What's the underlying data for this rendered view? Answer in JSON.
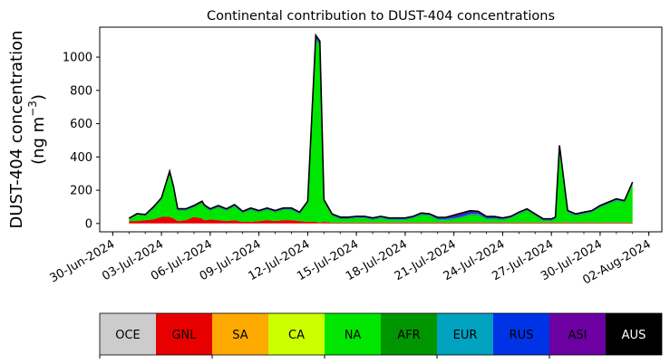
{
  "chart_data": {
    "type": "area",
    "title": "Continental contribution to DUST-404 concentrations",
    "ylabel_line1": "DUST-404 concentration",
    "ylabel_line2_prefix": "(ng m",
    "ylabel_line2_exp": "−3",
    "ylabel_line2_suffix": ")",
    "xlabel": "",
    "ylim": [
      -50,
      1180
    ],
    "yticks": [
      0,
      200,
      400,
      600,
      800,
      1000
    ],
    "x_start": "2024-07-01",
    "x_end": "2024-08-01",
    "xticks": [
      "30-Jun-2024",
      "03-Jul-2024",
      "06-Jul-2024",
      "09-Jul-2024",
      "12-Jul-2024",
      "15-Jul-2024",
      "18-Jul-2024",
      "21-Jul-2024",
      "24-Jul-2024",
      "27-Jul-2024",
      "30-Jul-2024",
      "02-Aug-2024"
    ],
    "x": [
      "2024-07-01",
      "2024-07-01 12:00",
      "2024-07-02",
      "2024-07-02 12:00",
      "2024-07-03",
      "2024-07-03 12:00",
      "2024-07-03 18:00",
      "2024-07-04",
      "2024-07-04 12:00",
      "2024-07-05",
      "2024-07-05 12:00",
      "2024-07-05 15:00",
      "2024-07-05 18:00",
      "2024-07-06",
      "2024-07-06 12:00",
      "2024-07-07",
      "2024-07-07 12:00",
      "2024-07-08",
      "2024-07-08 12:00",
      "2024-07-09",
      "2024-07-09 12:00",
      "2024-07-10",
      "2024-07-10 12:00",
      "2024-07-11",
      "2024-07-11 12:00",
      "2024-07-12",
      "2024-07-12 12:00",
      "2024-07-12 18:00",
      "2024-07-13",
      "2024-07-13 12:00",
      "2024-07-14",
      "2024-07-14 12:00",
      "2024-07-15",
      "2024-07-15 12:00",
      "2024-07-16",
      "2024-07-16 12:00",
      "2024-07-17",
      "2024-07-17 12:00",
      "2024-07-18",
      "2024-07-18 12:00",
      "2024-07-19",
      "2024-07-19 12:00",
      "2024-07-20",
      "2024-07-20 12:00",
      "2024-07-21",
      "2024-07-21 12:00",
      "2024-07-22",
      "2024-07-22 12:00",
      "2024-07-23",
      "2024-07-23 12:00",
      "2024-07-24",
      "2024-07-24 12:00",
      "2024-07-25",
      "2024-07-25 12:00",
      "2024-07-26",
      "2024-07-26 12:00",
      "2024-07-27",
      "2024-07-27 06:00",
      "2024-07-27 12:00",
      "2024-07-28",
      "2024-07-28 12:00",
      "2024-07-29",
      "2024-07-29 12:00",
      "2024-07-30",
      "2024-07-30 12:00",
      "2024-07-31",
      "2024-07-31 12:00",
      "2024-08-01"
    ],
    "series": [
      {
        "name": "GNL",
        "color": "#e80000",
        "values": [
          15,
          15,
          20,
          25,
          40,
          40,
          30,
          15,
          20,
          40,
          30,
          20,
          20,
          25,
          20,
          15,
          20,
          10,
          10,
          15,
          20,
          15,
          20,
          20,
          15,
          10,
          10,
          5,
          10,
          5,
          5,
          5,
          5,
          5,
          5,
          5,
          5,
          5,
          5,
          5,
          5,
          5,
          5,
          5,
          5,
          5,
          5,
          5,
          5,
          5,
          5,
          5,
          5,
          5,
          5,
          5,
          5,
          5,
          5,
          5,
          5,
          5,
          5,
          5,
          5,
          5,
          5,
          5
        ]
      },
      {
        "name": "NA",
        "color": "#00e600",
        "values": [
          10,
          35,
          25,
          60,
          100,
          250,
          170,
          60,
          55,
          55,
          90,
          80,
          70,
          50,
          75,
          60,
          80,
          50,
          70,
          50,
          60,
          50,
          60,
          60,
          40,
          110,
          1090,
          1060,
          120,
          40,
          20,
          20,
          25,
          25,
          15,
          25,
          15,
          15,
          15,
          25,
          45,
          40,
          15,
          15,
          20,
          30,
          45,
          45,
          20,
          20,
          15,
          25,
          50,
          70,
          40,
          10,
          10,
          20,
          420,
          60,
          40,
          50,
          60,
          90,
          110,
          130,
          120,
          230
        ]
      },
      {
        "name": "AFR",
        "color": "#009600",
        "values": [
          2,
          3,
          3,
          5,
          5,
          8,
          5,
          4,
          4,
          4,
          5,
          5,
          5,
          4,
          4,
          4,
          5,
          4,
          4,
          4,
          4,
          4,
          4,
          4,
          4,
          5,
          8,
          8,
          5,
          4,
          4,
          4,
          4,
          4,
          4,
          4,
          4,
          4,
          4,
          4,
          4,
          4,
          4,
          4,
          4,
          4,
          4,
          4,
          4,
          4,
          4,
          4,
          4,
          4,
          4,
          4,
          4,
          4,
          15,
          4,
          4,
          4,
          4,
          4,
          4,
          4,
          4,
          5
        ]
      },
      {
        "name": "EUR",
        "color": "#00a2c0",
        "values": [
          2,
          2,
          2,
          3,
          3,
          5,
          5,
          3,
          3,
          3,
          3,
          3,
          3,
          3,
          3,
          3,
          3,
          3,
          3,
          3,
          3,
          3,
          3,
          3,
          3,
          3,
          5,
          5,
          3,
          3,
          3,
          3,
          3,
          3,
          3,
          3,
          3,
          3,
          3,
          3,
          3,
          3,
          3,
          3,
          3,
          3,
          3,
          3,
          3,
          3,
          3,
          3,
          3,
          3,
          3,
          3,
          3,
          3,
          10,
          3,
          3,
          3,
          3,
          3,
          3,
          3,
          3,
          3
        ]
      },
      {
        "name": "RUS",
        "color": "#0032e6",
        "values": [
          1,
          2,
          2,
          3,
          3,
          5,
          5,
          3,
          3,
          3,
          3,
          3,
          3,
          3,
          3,
          3,
          3,
          3,
          3,
          3,
          3,
          3,
          3,
          3,
          3,
          3,
          8,
          8,
          3,
          3,
          3,
          3,
          3,
          3,
          3,
          3,
          3,
          3,
          3,
          3,
          3,
          3,
          5,
          5,
          8,
          10,
          10,
          8,
          5,
          5,
          3,
          3,
          3,
          3,
          3,
          3,
          3,
          3,
          10,
          3,
          3,
          3,
          3,
          3,
          3,
          3,
          3,
          3
        ]
      },
      {
        "name": "ASI",
        "color": "#6c00a0",
        "values": [
          1,
          2,
          2,
          3,
          3,
          6,
          5,
          3,
          3,
          3,
          3,
          3,
          3,
          3,
          3,
          3,
          3,
          3,
          3,
          3,
          3,
          3,
          3,
          3,
          3,
          3,
          10,
          10,
          3,
          3,
          3,
          3,
          3,
          3,
          3,
          3,
          3,
          3,
          3,
          3,
          3,
          3,
          5,
          5,
          10,
          12,
          10,
          8,
          5,
          5,
          3,
          3,
          3,
          3,
          3,
          3,
          3,
          3,
          10,
          3,
          3,
          3,
          3,
          3,
          3,
          3,
          3,
          3
        ]
      },
      {
        "name": "AUS",
        "color": "#000000",
        "values": [
          0,
          0,
          0,
          0,
          0,
          0,
          0,
          0,
          0,
          0,
          0,
          0,
          0,
          0,
          0,
          0,
          0,
          0,
          0,
          0,
          0,
          0,
          0,
          0,
          0,
          0,
          0,
          0,
          0,
          0,
          0,
          0,
          0,
          0,
          0,
          0,
          0,
          0,
          0,
          0,
          0,
          0,
          0,
          0,
          0,
          0,
          0,
          0,
          0,
          0,
          0,
          0,
          0,
          0,
          0,
          0,
          0,
          0,
          0,
          0,
          0,
          0,
          0,
          0,
          0,
          0,
          0,
          0
        ]
      }
    ],
    "legend": [
      {
        "name": "OCE",
        "color": "#cccccc",
        "text_color": "#000000"
      },
      {
        "name": "GNL",
        "color": "#e80000",
        "text_color": "#000000"
      },
      {
        "name": "SA",
        "color": "#ffaa00",
        "text_color": "#000000"
      },
      {
        "name": "CA",
        "color": "#ccff00",
        "text_color": "#000000"
      },
      {
        "name": "NA",
        "color": "#00e600",
        "text_color": "#000000"
      },
      {
        "name": "AFR",
        "color": "#009600",
        "text_color": "#000000"
      },
      {
        "name": "EUR",
        "color": "#00a2c0",
        "text_color": "#000000"
      },
      {
        "name": "RUS",
        "color": "#0032e6",
        "text_color": "#000000"
      },
      {
        "name": "ASI",
        "color": "#6c00a0",
        "text_color": "#000000"
      },
      {
        "name": "AUS",
        "color": "#000000",
        "text_color": "#ffffff"
      }
    ],
    "legend_placement": "bottom"
  }
}
